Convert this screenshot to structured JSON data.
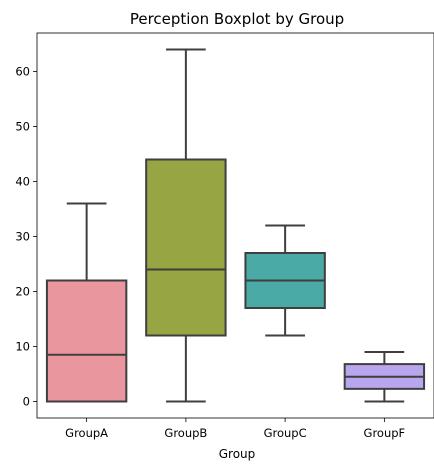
{
  "chart_data": {
    "type": "box",
    "title": "Perception Boxplot by Group",
    "xlabel": "Group",
    "ylabel": "",
    "categories": [
      "GroupA",
      "GroupB",
      "GroupC",
      "GroupF"
    ],
    "ylim": [
      -3,
      67
    ],
    "yticks": [
      0,
      10,
      20,
      30,
      40,
      50,
      60
    ],
    "grid": false,
    "legend": "none",
    "boxes": [
      {
        "category": "GroupA",
        "whisker_low": 0,
        "q1": 0,
        "median": 8.5,
        "q3": 22,
        "whisker_high": 36,
        "color": "#e9969f"
      },
      {
        "category": "GroupB",
        "whisker_low": 0,
        "q1": 12,
        "median": 24,
        "q3": 44,
        "whisker_high": 64,
        "color": "#97a643"
      },
      {
        "category": "GroupC",
        "whisker_low": 12,
        "q1": 17,
        "median": 22,
        "q3": 27,
        "whisker_high": 32,
        "color": "#4aaaa5"
      },
      {
        "category": "GroupF",
        "whisker_low": 0,
        "q1": 2.3,
        "median": 4.5,
        "q3": 6.8,
        "whisker_high": 9,
        "color": "#b9a6ee"
      }
    ],
    "line_color": "#3f3f3f"
  }
}
